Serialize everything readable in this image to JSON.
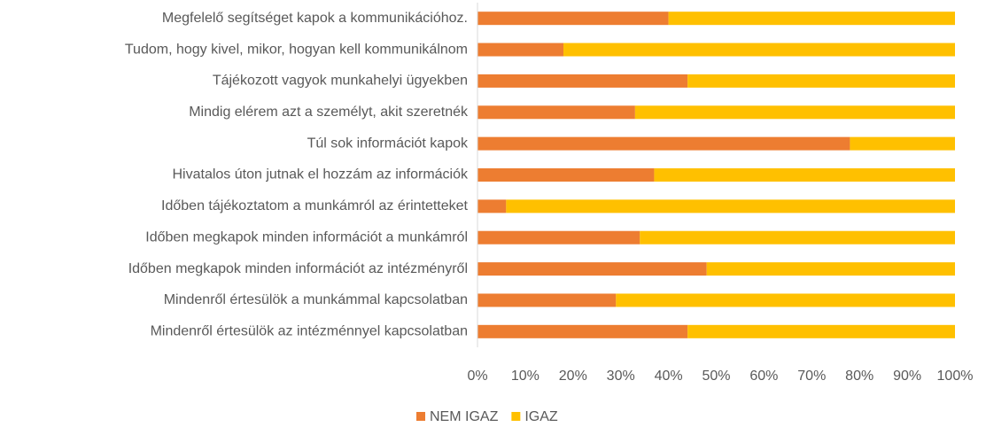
{
  "chart_data": {
    "type": "stacked-barh",
    "categories": [
      "Megfelelő segítséget kapok a kommunikációhoz.",
      "Tudom, hogy kivel, mikor, hogyan kell kommunikálnom",
      "Tájékozott vagyok munkahelyi ügyekben",
      "Mindig elérem azt a személyt, akit szeretnék",
      "Túl sok információt kapok",
      "Hivatalos úton jutnak el hozzám az információk",
      "Időben tájékoztatom a munkámról az érintetteket",
      "Időben megkapok minden információt a munkámról",
      "Időben megkapok minden információt az intézményről",
      "Mindenről értesülök a munkámmal kapcsolatban",
      "Mindenről értesülök az intézménnyel kapcsolatban"
    ],
    "series": [
      {
        "name": "NEM IGAZ",
        "color": "#ed7d31",
        "values": [
          40,
          18,
          44,
          33,
          78,
          37,
          6,
          34,
          48,
          29,
          44
        ]
      },
      {
        "name": "IGAZ",
        "color": "#ffc000",
        "values": [
          60,
          82,
          56,
          67,
          22,
          63,
          94,
          66,
          52,
          71,
          56
        ]
      }
    ],
    "xlim": [
      0,
      100
    ],
    "xticks": [
      {
        "value": 0,
        "label": "0%"
      },
      {
        "value": 10,
        "label": "10%"
      },
      {
        "value": 20,
        "label": "20%"
      },
      {
        "value": 30,
        "label": "30%"
      },
      {
        "value": 40,
        "label": "40%"
      },
      {
        "value": 50,
        "label": "50%"
      },
      {
        "value": 60,
        "label": "60%"
      },
      {
        "value": 70,
        "label": "70%"
      },
      {
        "value": 80,
        "label": "80%"
      },
      {
        "value": 90,
        "label": "90%"
      },
      {
        "value": 100,
        "label": "100%"
      }
    ],
    "legend": "bottom"
  }
}
